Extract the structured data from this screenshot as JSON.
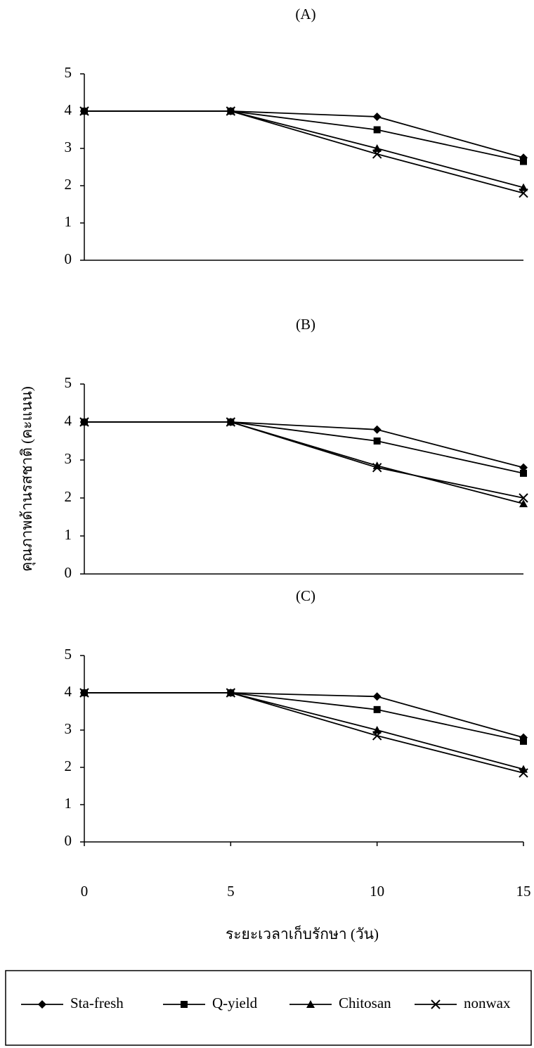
{
  "chart_data": [
    {
      "type": "line",
      "title": "(A)",
      "x": [
        0,
        5,
        10,
        15
      ],
      "xlim": [
        0,
        15
      ],
      "ylim": [
        0,
        5
      ],
      "yticks": [
        0,
        1,
        2,
        3,
        4,
        5
      ],
      "series": [
        {
          "name": "Sta-fresh",
          "color": "#000000",
          "marker": "diamond",
          "values": [
            4,
            4,
            3.85,
            2.75
          ]
        },
        {
          "name": "Q-yield",
          "color": "#000000",
          "marker": "square",
          "values": [
            4,
            4,
            3.5,
            2.65
          ]
        },
        {
          "name": "Chitosan",
          "color": "#000000",
          "marker": "triangle",
          "values": [
            4,
            4,
            3.0,
            1.95
          ]
        },
        {
          "name": "nonwax",
          "color": "#000000",
          "marker": "x",
          "values": [
            4,
            4,
            2.85,
            1.8
          ]
        }
      ]
    },
    {
      "type": "line",
      "title": "(B)",
      "y_label": "คุณภาพด้านรสชาติ (คะแนน)",
      "x": [
        0,
        5,
        10,
        15
      ],
      "xlim": [
        0,
        15
      ],
      "ylim": [
        0,
        5
      ],
      "yticks": [
        0,
        1,
        2,
        3,
        4,
        5
      ],
      "series": [
        {
          "name": "Sta-fresh",
          "color": "#000000",
          "marker": "diamond",
          "values": [
            4,
            4,
            3.8,
            2.8
          ]
        },
        {
          "name": "Q-yield",
          "color": "#000000",
          "marker": "square",
          "values": [
            4,
            4,
            3.5,
            2.65
          ]
        },
        {
          "name": "Chitosan",
          "color": "#000000",
          "marker": "triangle",
          "values": [
            4,
            4,
            2.85,
            1.85
          ]
        },
        {
          "name": "nonwax",
          "color": "#000000",
          "marker": "x",
          "values": [
            4,
            4,
            2.8,
            2.0
          ]
        }
      ]
    },
    {
      "type": "line",
      "title": "(C)",
      "x_label": "ระยะเวลาเก็บรักษา (วัน)",
      "x": [
        0,
        5,
        10,
        15
      ],
      "xlim": [
        0,
        15
      ],
      "xticks": [
        0,
        5,
        10,
        15
      ],
      "ylim": [
        0,
        5
      ],
      "yticks": [
        0,
        1,
        2,
        3,
        4,
        5
      ],
      "legend": "bottom",
      "series": [
        {
          "name": "Sta-fresh",
          "color": "#000000",
          "marker": "diamond",
          "values": [
            4,
            4,
            3.9,
            2.8
          ]
        },
        {
          "name": "Q-yield",
          "color": "#000000",
          "marker": "square",
          "values": [
            4,
            4,
            3.55,
            2.7
          ]
        },
        {
          "name": "Chitosan",
          "color": "#000000",
          "marker": "triangle",
          "values": [
            4,
            4,
            3.0,
            1.95
          ]
        },
        {
          "name": "nonwax",
          "color": "#000000",
          "marker": "x",
          "values": [
            4,
            4,
            2.85,
            1.85
          ]
        }
      ]
    }
  ]
}
